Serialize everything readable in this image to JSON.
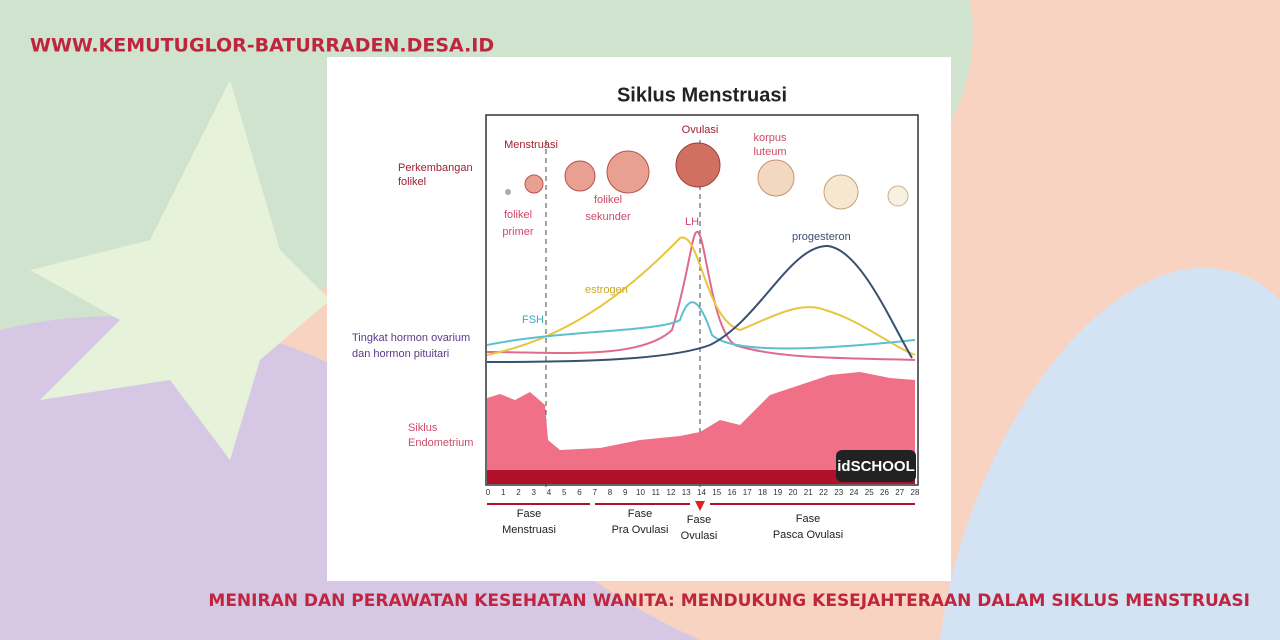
{
  "site": "WWW.KEMUTUGLOR-BATURRADEN.DESA.ID",
  "headline": "MENIRAN DAN PERAWATAN KESEHATAN WANITA: MENDUKUNG KESEJAHTERAAN DALAM SIKLUS MENSTRUASI",
  "diagram": {
    "title": "Siklus Menstruasi",
    "follicle_label": [
      "Perkembangan",
      "folikel"
    ],
    "menstruasi": "Menstruasi",
    "ovulasi": "Ovulasi",
    "korpus": [
      "korpus",
      "luteum"
    ],
    "primer": [
      "folikel",
      "primer"
    ],
    "sekunder": [
      "folikel",
      "sekunder"
    ],
    "hormone_label": [
      "Tingkat hormon ovarium",
      "dan hormon pituitari"
    ],
    "lh": "LH",
    "estrogen": "estrogen",
    "fsh": "FSH",
    "progesteron": "progesteron",
    "endometrium_label": [
      "Siklus",
      "Endometrium"
    ],
    "watermark": "idSCHOOL",
    "days": [
      0,
      1,
      2,
      3,
      4,
      5,
      6,
      7,
      8,
      9,
      10,
      11,
      12,
      13,
      14,
      15,
      16,
      17,
      18,
      19,
      20,
      21,
      22,
      23,
      24,
      25,
      26,
      27,
      28
    ],
    "phases": [
      [
        "Fase",
        "Menstruasi"
      ],
      [
        "Fase",
        "Pra Ovulasi"
      ],
      [
        "Fase",
        "Ovulasi"
      ],
      [
        "Fase",
        "Pasca Ovulasi"
      ]
    ]
  }
}
